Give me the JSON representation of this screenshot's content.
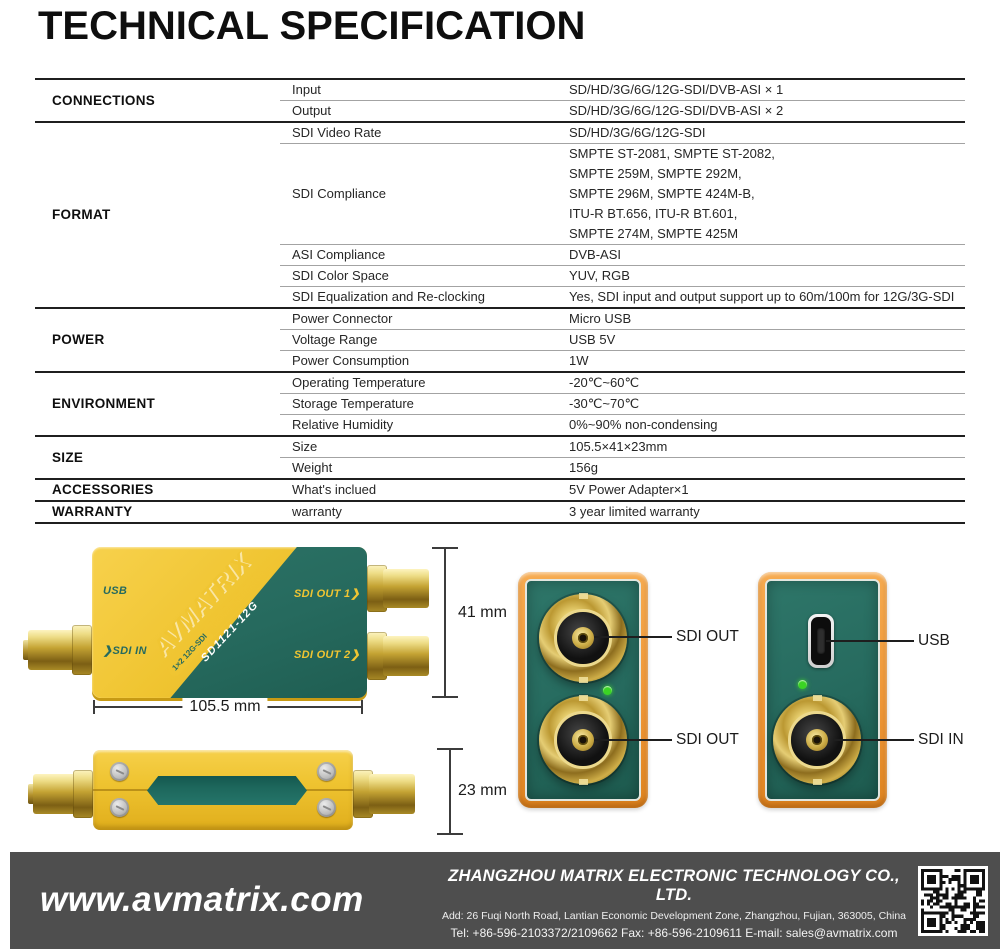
{
  "title": "TECHNICAL SPECIFICATION",
  "colors": {
    "device_yellow": "#F0C532",
    "device_teal": "#266A5E",
    "panel_orange": "#EF9737",
    "footer_bg": "#4E4E4E",
    "led_green": "#3BD424"
  },
  "spec_table": {
    "sections": [
      {
        "name": "CONNECTIONS",
        "rows": [
          {
            "property": "Input",
            "value": "SD/HD/3G/6G/12G-SDI/DVB-ASI × 1"
          },
          {
            "property": "Output",
            "value": "SD/HD/3G/6G/12G-SDI/DVB-ASI × 2"
          }
        ]
      },
      {
        "name": "FORMAT",
        "rows": [
          {
            "property": "SDI Video Rate",
            "value": "SD/HD/3G/6G/12G-SDI"
          },
          {
            "property": "SDI Compliance",
            "value": [
              "SMPTE ST-2081, SMPTE ST-2082,",
              "SMPTE 259M, SMPTE 292M,",
              "SMPTE 296M, SMPTE 424M-B,",
              "ITU-R BT.656, ITU-R BT.601,",
              "SMPTE 274M, SMPTE 425M"
            ]
          },
          {
            "property": "ASI Compliance",
            "value": "DVB-ASI"
          },
          {
            "property": "SDI Color Space",
            "value": "YUV, RGB"
          },
          {
            "property": "SDI Equalization and Re-clocking",
            "value": "Yes, SDI input and output support up to 60m/100m for 12G/3G-SDI"
          }
        ]
      },
      {
        "name": "POWER",
        "rows": [
          {
            "property": "Power Connector",
            "value": "Micro USB"
          },
          {
            "property": "Voltage Range",
            "value": "USB 5V"
          },
          {
            "property": "Power Consumption",
            "value": "1W"
          }
        ]
      },
      {
        "name": "ENVIRONMENT",
        "rows": [
          {
            "property": "Operating Temperature",
            "value": "-20℃~60℃"
          },
          {
            "property": "Storage Temperature",
            "value": "-30℃~70℃"
          },
          {
            "property": "Relative Humidity",
            "value": "0%~90% non-condensing"
          }
        ]
      },
      {
        "name": "SIZE",
        "rows": [
          {
            "property": "Size",
            "value": "105.5×41×23mm"
          },
          {
            "property": "Weight",
            "value": "156g"
          }
        ]
      },
      {
        "name": "ACCESSORIES",
        "rows": [
          {
            "property": "What's inclued",
            "value": "5V Power Adapter×1"
          }
        ]
      },
      {
        "name": "WARRANTY",
        "rows": [
          {
            "property": "warranty",
            "value": "3 year limited warranty"
          }
        ]
      }
    ]
  },
  "product": {
    "top_view": {
      "usb_label": "USB",
      "sdi_in_label": "❯SDI IN",
      "sdi_out1_label": "SDI OUT 1❯",
      "sdi_out2_label": "SDI OUT 2❯",
      "brand": "AVMATRIX",
      "badge_left": "1×2 12G-SDI",
      "badge_right": "SIGNAL REPEATER",
      "model": "SD1121-12G"
    },
    "dimensions": {
      "height": "41 mm",
      "length": "105.5 mm",
      "thickness": "23 mm"
    },
    "rear_view": {
      "callout_top": "SDI OUT",
      "callout_bottom": "SDI OUT"
    },
    "front_view": {
      "callout_usb": "USB",
      "callout_sdi_in": "SDI IN"
    }
  },
  "footer": {
    "website": "www.avmatrix.com",
    "company": "ZHANGZHOU MATRIX ELECTRONIC TECHNOLOGY CO., LTD.",
    "address": "Add: 26 Fuqi North Road, Lantian Economic Development Zone, Zhangzhou, Fujian, 363005, China",
    "contact": "Tel: +86-596-2103372/2109662   Fax: +86-596-2109611   E-mail: sales@avmatrix.com"
  }
}
